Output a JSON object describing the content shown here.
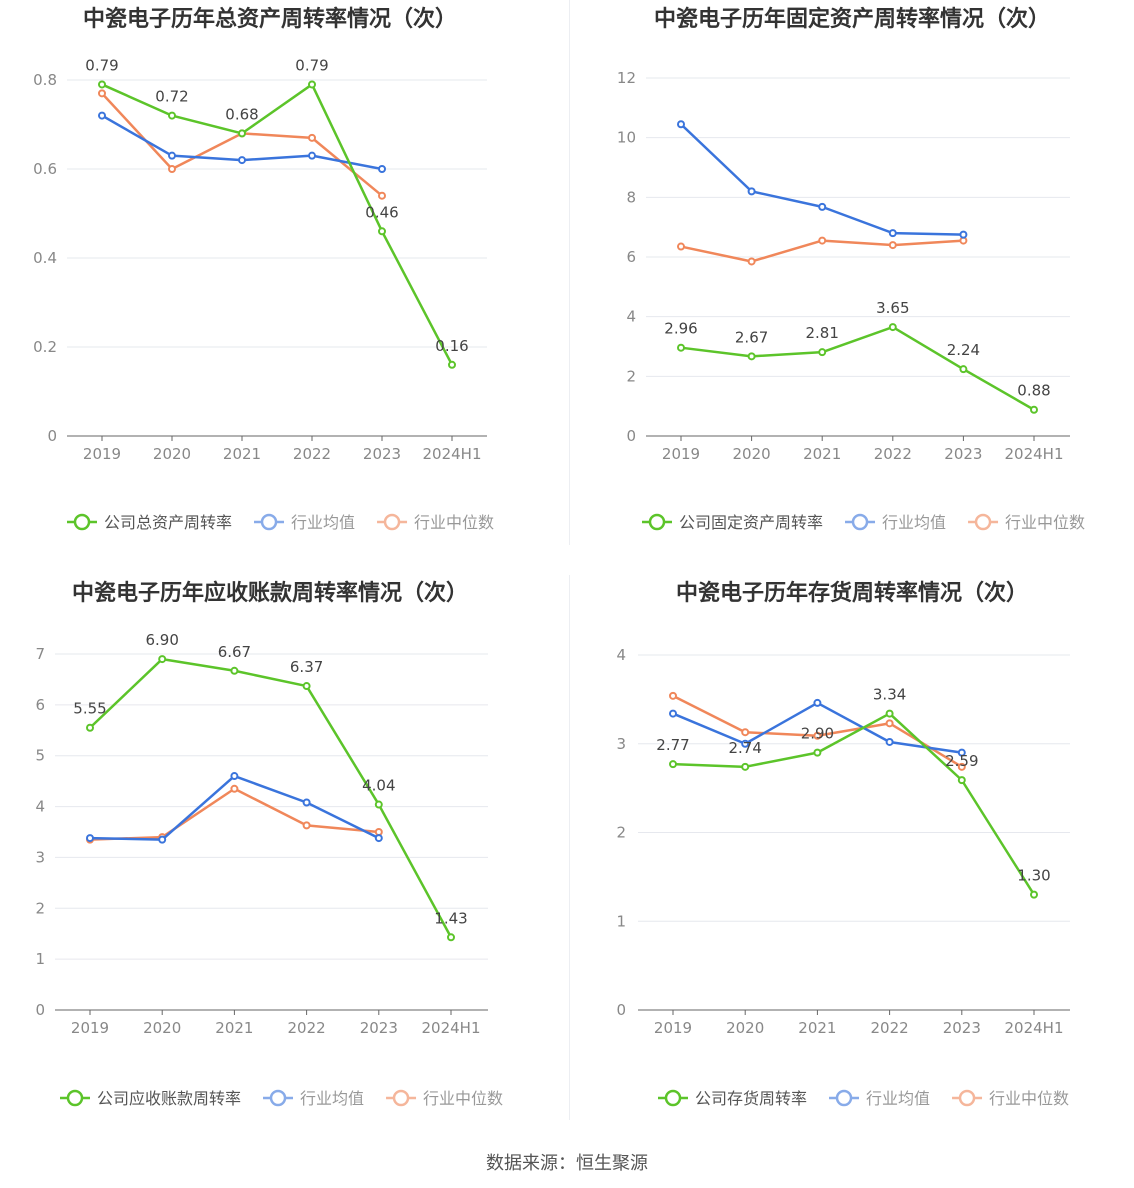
{
  "source_text": "数据来源：恒生聚源",
  "colors": {
    "company": "#5cc42a",
    "average": "#3a74dc",
    "median": "#f0875a",
    "axis": "#888888",
    "grid": "#e6e8ee",
    "title": "#333333"
  },
  "chart_data": [
    {
      "type": "line",
      "title": "中瓷电子历年总资产周转率情况（次）",
      "categories": [
        "2019",
        "2020",
        "2021",
        "2022",
        "2023",
        "2024H1"
      ],
      "yticks": [
        "0",
        "0.2",
        "0.4",
        "0.6",
        "0.8"
      ],
      "ylim": [
        0,
        0.8
      ],
      "series": [
        {
          "key": "company",
          "name": "公司总资产周转率",
          "values": [
            0.79,
            0.72,
            0.68,
            0.79,
            0.46,
            0.16
          ],
          "labels": [
            "0.79",
            "0.72",
            "0.68",
            "0.79",
            "0.46",
            "0.16"
          ]
        },
        {
          "key": "average",
          "name": "行业均值",
          "values": [
            0.72,
            0.63,
            0.62,
            0.63,
            0.6,
            null
          ]
        },
        {
          "key": "median",
          "name": "行业中位数",
          "values": [
            0.77,
            0.6,
            0.68,
            0.67,
            0.54,
            null
          ]
        }
      ]
    },
    {
      "type": "line",
      "title": "中瓷电子历年固定资产周转率情况（次）",
      "categories": [
        "2019",
        "2020",
        "2021",
        "2022",
        "2023",
        "2024H1"
      ],
      "yticks": [
        "0",
        "2",
        "4",
        "6",
        "8",
        "10",
        "12"
      ],
      "ylim": [
        0,
        12
      ],
      "series": [
        {
          "key": "company",
          "name": "公司固定资产周转率",
          "values": [
            2.96,
            2.67,
            2.81,
            3.65,
            2.24,
            0.88
          ],
          "labels": [
            "2.96",
            "2.67",
            "2.81",
            "3.65",
            "2.24",
            "0.88"
          ]
        },
        {
          "key": "average",
          "name": "行业均值",
          "values": [
            10.45,
            8.2,
            7.68,
            6.8,
            6.75,
            null
          ]
        },
        {
          "key": "median",
          "name": "行业中位数",
          "values": [
            6.35,
            5.85,
            6.55,
            6.4,
            6.55,
            null
          ]
        }
      ]
    },
    {
      "type": "line",
      "title": "中瓷电子历年应收账款周转率情况（次）",
      "categories": [
        "2019",
        "2020",
        "2021",
        "2022",
        "2023",
        "2024H1"
      ],
      "yticks": [
        "0",
        "1",
        "2",
        "3",
        "4",
        "5",
        "6",
        "7"
      ],
      "ylim": [
        0,
        7
      ],
      "series": [
        {
          "key": "company",
          "name": "公司应收账款周转率",
          "values": [
            5.55,
            6.9,
            6.67,
            6.37,
            4.04,
            1.43
          ],
          "labels": [
            "5.55",
            "6.90",
            "6.67",
            "6.37",
            "4.04",
            "1.43"
          ]
        },
        {
          "key": "average",
          "name": "行业均值",
          "values": [
            3.38,
            3.35,
            4.6,
            4.08,
            3.38,
            null
          ]
        },
        {
          "key": "median",
          "name": "行业中位数",
          "values": [
            3.35,
            3.4,
            4.35,
            3.63,
            3.5,
            null
          ]
        }
      ]
    },
    {
      "type": "line",
      "title": "中瓷电子历年存货周转率情况（次）",
      "categories": [
        "2019",
        "2020",
        "2021",
        "2022",
        "2023",
        "2024H1"
      ],
      "yticks": [
        "0",
        "1",
        "2",
        "3",
        "4"
      ],
      "ylim": [
        0,
        4
      ],
      "series": [
        {
          "key": "company",
          "name": "公司存货周转率",
          "values": [
            2.77,
            2.74,
            2.9,
            3.34,
            2.59,
            1.3
          ],
          "labels": [
            "2.77",
            "2.74",
            "2.90",
            "3.34",
            "2.59",
            "1.30"
          ]
        },
        {
          "key": "average",
          "name": "行业均值",
          "values": [
            3.34,
            3.0,
            3.46,
            3.02,
            2.9,
            null
          ]
        },
        {
          "key": "median",
          "name": "行业中位数",
          "values": [
            3.54,
            3.13,
            3.09,
            3.23,
            2.74,
            null
          ]
        }
      ]
    }
  ]
}
